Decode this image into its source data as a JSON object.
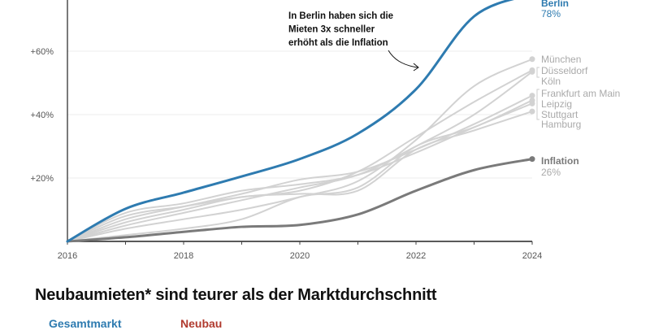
{
  "chart_data": {
    "type": "line",
    "title": "",
    "xlabel": "",
    "ylabel": "",
    "x": [
      2016,
      2017,
      2018,
      2019,
      2020,
      2021,
      2022,
      2023,
      2024
    ],
    "x_tick_labels": [
      "2016",
      "2018",
      "2020",
      "2022",
      "2024"
    ],
    "xlim": [
      2016,
      2024
    ],
    "ylim": [
      0,
      76
    ],
    "y_ticks": [
      20,
      40,
      60
    ],
    "y_tick_labels": [
      "+20%",
      "+40%",
      "+60%"
    ],
    "grid": "horizontal",
    "series": [
      {
        "name": "München",
        "color": "#d2d2d2",
        "values": [
          0,
          4,
          7,
          10,
          14,
          19,
          32,
          49,
          57.5
        ]
      },
      {
        "name": "Düsseldorf",
        "color": "#d2d2d2",
        "values": [
          0,
          8,
          11,
          14,
          16,
          22,
          33,
          44,
          54
        ]
      },
      {
        "name": "Köln",
        "color": "#d2d2d2",
        "values": [
          0,
          5,
          9,
          13,
          17,
          21,
          30,
          40,
          53.5
        ]
      },
      {
        "name": "Frankfurt am Main",
        "color": "#d2d2d2",
        "values": [
          0,
          7,
          11,
          15,
          19.5,
          22,
          29,
          37,
          46
        ]
      },
      {
        "name": "Leipzig",
        "color": "#d2d2d2",
        "values": [
          0,
          2,
          4,
          7,
          14,
          17,
          30,
          36,
          44.5
        ]
      },
      {
        "name": "Stuttgart",
        "color": "#d2d2d2",
        "values": [
          0,
          9,
          12,
          16,
          18,
          21,
          28,
          36,
          43.5
        ]
      },
      {
        "name": "Hamburg",
        "color": "#d2d2d2",
        "values": [
          0,
          6,
          10,
          14,
          15,
          16,
          29,
          35,
          41
        ]
      },
      {
        "name": "Inflation",
        "color": "#7a7a7a",
        "values": [
          0,
          1.3,
          3,
          4.6,
          5.2,
          8.5,
          16,
          22.5,
          26
        ],
        "end_label": "26%"
      },
      {
        "name": "Berlin",
        "color": "#2e7bb0",
        "values": [
          0,
          10.3,
          15.4,
          20.5,
          26,
          34,
          48,
          71,
          78
        ],
        "end_label": "78%"
      }
    ],
    "annotation": [
      "In Berlin haben sich die",
      "Mieten 3x schneller",
      "erhöht als die Inflation"
    ]
  },
  "next_chart": {
    "title": "Neubaumieten* sind teurer als der Marktdurchschnitt",
    "legend": [
      {
        "label": "Gesamtmarkt",
        "color": "#2e7bb0"
      },
      {
        "label": "Neubau",
        "color": "#b03a2e"
      }
    ]
  }
}
